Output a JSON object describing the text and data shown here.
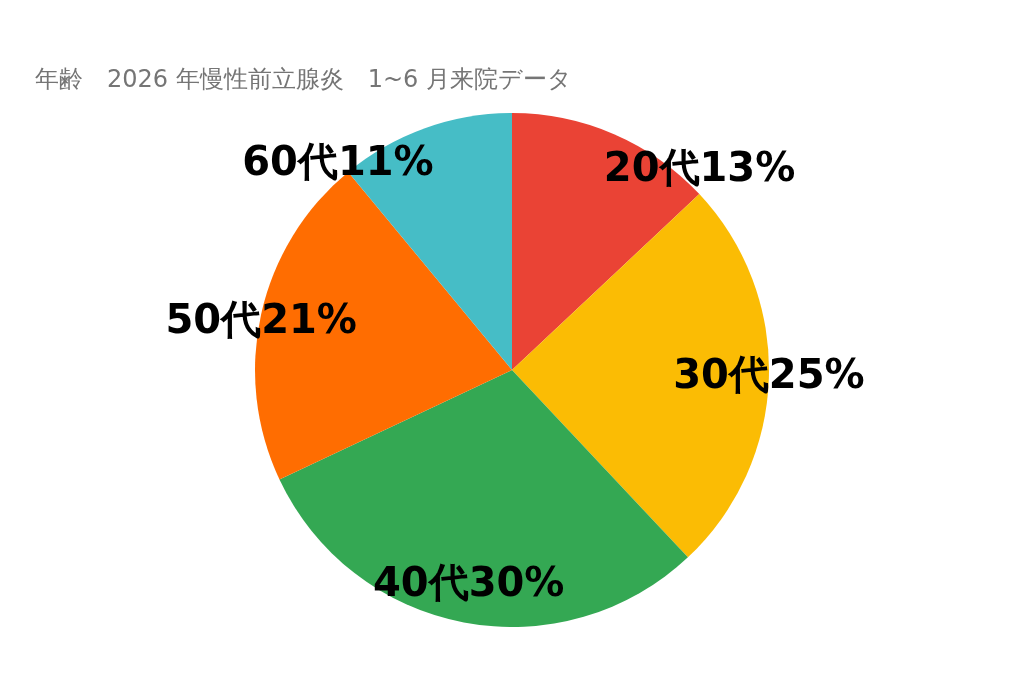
{
  "chart_data": {
    "type": "pie",
    "title": "年齢　2026 年慢性前立腺炎　1~6 月来院データ",
    "categories": [
      "20代",
      "30代",
      "40代",
      "50代",
      "60代"
    ],
    "values": [
      13,
      25,
      30,
      21,
      11
    ],
    "colors": [
      "#ea4335",
      "#fbbc04",
      "#34a853",
      "#ff6d01",
      "#46bdc6"
    ],
    "value_labels": [
      "13%",
      "25%",
      "30%",
      "21%",
      "11%"
    ],
    "legend": false
  }
}
